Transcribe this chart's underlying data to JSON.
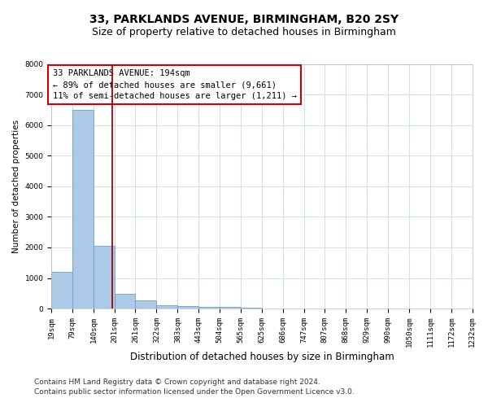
{
  "title1": "33, PARKLANDS AVENUE, BIRMINGHAM, B20 2SY",
  "title2": "Size of property relative to detached houses in Birmingham",
  "xlabel": "Distribution of detached houses by size in Birmingham",
  "ylabel": "Number of detached properties",
  "footnote1": "Contains HM Land Registry data © Crown copyright and database right 2024.",
  "footnote2": "Contains public sector information licensed under the Open Government Licence v3.0.",
  "annotation_line1": "33 PARKLANDS AVENUE: 194sqm",
  "annotation_line2": "← 89% of detached houses are smaller (9,661)",
  "annotation_line3": "11% of semi-detached houses are larger (1,211) →",
  "property_size": 194,
  "bin_edges": [
    19,
    79,
    140,
    201,
    261,
    322,
    383,
    443,
    504,
    565,
    625,
    686,
    747,
    807,
    868,
    929,
    990,
    1050,
    1111,
    1172,
    1232
  ],
  "bar_heights": [
    1200,
    6500,
    2050,
    480,
    270,
    120,
    80,
    55,
    50,
    20,
    8,
    4,
    2,
    1,
    1,
    0,
    0,
    0,
    0,
    0
  ],
  "bar_color": "#adc9e8",
  "bar_edge_color": "#6a9fc8",
  "line_color": "#aa0000",
  "annotation_box_color": "#cc0000",
  "background_color": "#ffffff",
  "grid_color": "#c8d8ea",
  "ylim": [
    0,
    8000
  ],
  "title1_fontsize": 10,
  "title2_fontsize": 9,
  "xlabel_fontsize": 8.5,
  "ylabel_fontsize": 7.5,
  "tick_fontsize": 6.5,
  "annotation_fontsize": 7.5,
  "footnote_fontsize": 6.5
}
